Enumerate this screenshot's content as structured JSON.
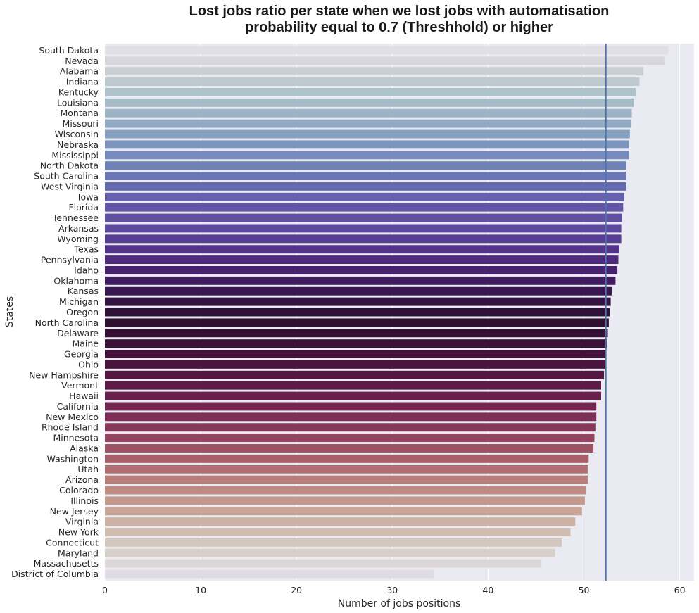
{
  "chart_data": {
    "type": "bar",
    "orientation": "horizontal",
    "title": "Lost jobs ratio per state when we lost jobs with automatisation probability equal to 0.7 (Threshhold) or higher",
    "title_lines": [
      "Lost jobs ratio per state when we lost jobs with automatisation",
      "probability equal to 0.7 (Threshhold) or higher"
    ],
    "xlabel": "Number of jobs positions",
    "ylabel": "States",
    "xlim": [
      0,
      61.5
    ],
    "xticks": [
      "0",
      "10",
      "20",
      "30",
      "40",
      "50",
      "60"
    ],
    "grid": true,
    "background": "#eaeaf2",
    "palette": "twilight",
    "reference_line": {
      "value": 52.3,
      "color": "#4c72b0"
    },
    "categories": [
      "South Dakota",
      "Nevada",
      "Alabama",
      "Indiana",
      "Kentucky",
      "Louisiana",
      "Montana",
      "Missouri",
      "Wisconsin",
      "Nebraska",
      "Mississippi",
      "North Dakota",
      "South Carolina",
      "West Virginia",
      "Iowa",
      "Florida",
      "Tennessee",
      "Arkansas",
      "Wyoming",
      "Texas",
      "Pennsylvania",
      "Idaho",
      "Oklahoma",
      "Kansas",
      "Michigan",
      "Oregon",
      "North Carolina",
      "Delaware",
      "Maine",
      "Georgia",
      "Ohio",
      "New Hampshire",
      "Vermont",
      "Hawaii",
      "California",
      "New Mexico",
      "Rhode Island",
      "Minnesota",
      "Alaska",
      "Washington",
      "Utah",
      "Arizona",
      "Colorado",
      "Illinois",
      "New Jersey",
      "Virginia",
      "New York",
      "Connecticut",
      "Maryland",
      "Massachusetts",
      "District of Columbia"
    ],
    "values": [
      58.8,
      58.4,
      56.2,
      55.8,
      55.4,
      55.2,
      55.0,
      54.9,
      54.8,
      54.7,
      54.7,
      54.4,
      54.4,
      54.4,
      54.2,
      54.1,
      54.0,
      53.9,
      53.9,
      53.7,
      53.6,
      53.5,
      53.3,
      52.9,
      52.8,
      52.7,
      52.6,
      52.5,
      52.4,
      52.3,
      52.3,
      52.1,
      51.8,
      51.8,
      51.3,
      51.3,
      51.2,
      51.1,
      51.0,
      50.5,
      50.4,
      50.4,
      50.2,
      50.1,
      49.8,
      49.1,
      48.6,
      47.7,
      47.0,
      45.5,
      34.3
    ],
    "colors": [
      "#e2dee6",
      "#d7d6dc",
      "#c9cfd2",
      "#bdc9cd",
      "#aec2c9",
      "#a5bbc6",
      "#9cb3c4",
      "#8fa9c2",
      "#859fbf",
      "#7d95bd",
      "#768bbb",
      "#6f82b8",
      "#6977b5",
      "#676cb1",
      "#6561ad",
      "#6356a8",
      "#6050a2",
      "#5c479c",
      "#583d94",
      "#54338a",
      "#4d2a7c",
      "#47236e",
      "#411c5f",
      "#3a1651",
      "#341343",
      "#2f1138",
      "#2e1030",
      "#331032",
      "#3a1136",
      "#42123a",
      "#4b143e",
      "#541641",
      "#5e1a46",
      "#681f4b",
      "#732650",
      "#7d2f55",
      "#88395a",
      "#93455f",
      "#9d5262",
      "#a76068",
      "#b06e70",
      "#b77d79",
      "#be8b83",
      "#c3988d",
      "#c8a597",
      "#cdb1a3",
      "#d1bcb0",
      "#d5c6bd",
      "#d8cfca",
      "#dcd6d6",
      "#e0dbe2"
    ]
  }
}
